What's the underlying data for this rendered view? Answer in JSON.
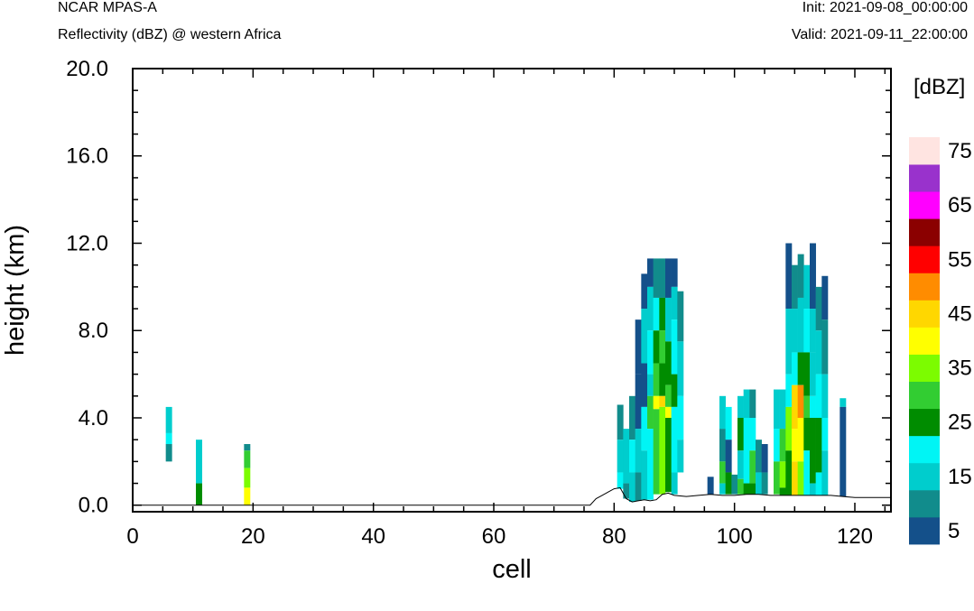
{
  "header": {
    "model": "NCAR MPAS-A",
    "subtitle": "Reflectivity (dBZ) @ western Africa",
    "init": "Init: 2021-09-08_00:00:00",
    "valid": "Valid: 2021-09-11_22:00:00"
  },
  "chart_data": {
    "type": "heatmap",
    "xlabel": "cell",
    "ylabel": "height (km)",
    "xlim": [
      0,
      126
    ],
    "ylim": [
      -0.3,
      20.0
    ],
    "xticks": [
      "0",
      "20",
      "40",
      "60",
      "80",
      "100",
      "120"
    ],
    "yticks": [
      "0.0",
      "4.0",
      "8.0",
      "12.0",
      "16.0",
      "20.0"
    ],
    "colorbar": {
      "unit": "[dBZ]",
      "labels": [
        "5",
        "15",
        "25",
        "35",
        "45",
        "55",
        "65",
        "75"
      ],
      "levels": [
        5,
        10,
        15,
        20,
        25,
        30,
        35,
        40,
        45,
        50,
        55,
        60,
        65,
        70,
        75
      ],
      "colors": [
        "#14508a",
        "#118c8c",
        "#00cdcd",
        "#00f5f5",
        "#008c00",
        "#32cd32",
        "#7cfc00",
        "#ffff00",
        "#ffd700",
        "#ff8c00",
        "#ff0000",
        "#8b0000",
        "#ff00ff",
        "#9932cc",
        "#ffe4e1"
      ]
    },
    "terrain": [
      [
        0,
        0
      ],
      [
        76,
        0
      ],
      [
        77,
        0.3
      ],
      [
        78,
        0.45
      ],
      [
        79,
        0.6
      ],
      [
        80,
        0.75
      ],
      [
        81,
        0.8
      ],
      [
        82,
        0.3
      ],
      [
        83,
        0.15
      ],
      [
        84,
        0.2
      ],
      [
        85,
        0.25
      ],
      [
        86,
        0.2
      ],
      [
        87,
        0.25
      ],
      [
        88,
        0.5
      ],
      [
        89,
        0.55
      ],
      [
        90,
        0.45
      ],
      [
        92,
        0.4
      ],
      [
        94,
        0.45
      ],
      [
        96,
        0.5
      ],
      [
        98,
        0.45
      ],
      [
        100,
        0.45
      ],
      [
        102,
        0.5
      ],
      [
        104,
        0.5
      ],
      [
        106,
        0.45
      ],
      [
        108,
        0.45
      ],
      [
        110,
        0.45
      ],
      [
        112,
        0.45
      ],
      [
        114,
        0.45
      ],
      [
        116,
        0.45
      ],
      [
        118,
        0.4
      ],
      [
        120,
        0.35
      ],
      [
        122,
        0.35
      ],
      [
        124,
        0.35
      ],
      [
        126,
        0.35
      ]
    ],
    "cells": [
      [
        6,
        4.5,
        3.3,
        15
      ],
      [
        6,
        3.3,
        2.8,
        20
      ],
      [
        6,
        2.8,
        2.0,
        10
      ],
      [
        11,
        3.0,
        1.0,
        15
      ],
      [
        11,
        1.0,
        0.0,
        25
      ],
      [
        19,
        2.8,
        2.5,
        10
      ],
      [
        19,
        2.5,
        1.7,
        30
      ],
      [
        19,
        1.7,
        0.8,
        35
      ],
      [
        19,
        0.8,
        0.0,
        40
      ],
      [
        81,
        4.6,
        3.0,
        10
      ],
      [
        81,
        3.0,
        1.5,
        15
      ],
      [
        81,
        1.5,
        0.75,
        20
      ],
      [
        82,
        3.5,
        1.0,
        15
      ],
      [
        82,
        1.0,
        0.3,
        10
      ],
      [
        83,
        5.0,
        3.0,
        10
      ],
      [
        83,
        3.0,
        1.5,
        20
      ],
      [
        83,
        1.5,
        0.15,
        15
      ],
      [
        84,
        8.5,
        6.0,
        5
      ],
      [
        84,
        6.0,
        3.5,
        5
      ],
      [
        84,
        3.5,
        1.5,
        15
      ],
      [
        84,
        1.5,
        0.2,
        10
      ],
      [
        85,
        10.6,
        9.0,
        5
      ],
      [
        85,
        9.0,
        6.5,
        15
      ],
      [
        85,
        6.5,
        4.5,
        5
      ],
      [
        85,
        4.5,
        2.5,
        20
      ],
      [
        85,
        2.5,
        0.25,
        15
      ],
      [
        86,
        11.3,
        10.0,
        5
      ],
      [
        86,
        10.0,
        8.0,
        15
      ],
      [
        86,
        8.0,
        6.0,
        20
      ],
      [
        86,
        6.0,
        5.0,
        15
      ],
      [
        86,
        5.0,
        3.5,
        30
      ],
      [
        86,
        3.5,
        0.25,
        20
      ],
      [
        87,
        11.3,
        9.5,
        10
      ],
      [
        87,
        9.5,
        8.0,
        20
      ],
      [
        87,
        8.0,
        6.5,
        25
      ],
      [
        87,
        6.5,
        5.0,
        30
      ],
      [
        87,
        5.0,
        4.4,
        40
      ],
      [
        87,
        4.4,
        0.5,
        30
      ],
      [
        88,
        11.3,
        9.5,
        10
      ],
      [
        88,
        9.5,
        8.0,
        25
      ],
      [
        88,
        8.0,
        6.5,
        30
      ],
      [
        88,
        6.5,
        5.0,
        25
      ],
      [
        88,
        5.0,
        4.5,
        45
      ],
      [
        88,
        4.5,
        0.5,
        35
      ],
      [
        89,
        11.3,
        9.5,
        5
      ],
      [
        89,
        9.5,
        7.5,
        15
      ],
      [
        89,
        7.5,
        5.5,
        25
      ],
      [
        89,
        5.5,
        4.5,
        30
      ],
      [
        89,
        4.5,
        4.0,
        40
      ],
      [
        89,
        4.0,
        0.6,
        25
      ],
      [
        90,
        11.3,
        10.0,
        5
      ],
      [
        90,
        10.0,
        8.5,
        15
      ],
      [
        90,
        8.5,
        6.0,
        20
      ],
      [
        90,
        6.0,
        4.5,
        25
      ],
      [
        90,
        4.5,
        1.5,
        20
      ],
      [
        90,
        1.5,
        0.5,
        15
      ],
      [
        91,
        9.8,
        7.5,
        10
      ],
      [
        91,
        7.5,
        5.0,
        15
      ],
      [
        91,
        5.0,
        3.0,
        20
      ],
      [
        91,
        3.0,
        1.5,
        15
      ],
      [
        96,
        1.3,
        0.5,
        5
      ],
      [
        98,
        5.0,
        3.5,
        15
      ],
      [
        98,
        3.5,
        2.0,
        10
      ],
      [
        98,
        2.0,
        1.0,
        30
      ],
      [
        98,
        1.0,
        0.5,
        15
      ],
      [
        99,
        4.5,
        3.0,
        20
      ],
      [
        99,
        3.0,
        1.5,
        5
      ],
      [
        99,
        1.5,
        0.5,
        25
      ],
      [
        100,
        1.4,
        0.5,
        10
      ],
      [
        101,
        5.0,
        4.0,
        15
      ],
      [
        101,
        4.0,
        2.5,
        25
      ],
      [
        101,
        2.5,
        1.2,
        15
      ],
      [
        101,
        1.2,
        0.5,
        30
      ],
      [
        102,
        5.3,
        4.0,
        15
      ],
      [
        102,
        4.0,
        1.0,
        20
      ],
      [
        102,
        1.0,
        0.5,
        25
      ],
      [
        103,
        5.3,
        4.0,
        10
      ],
      [
        103,
        4.0,
        2.5,
        20
      ],
      [
        103,
        2.5,
        1.0,
        30
      ],
      [
        103,
        1.0,
        0.5,
        25
      ],
      [
        104,
        3.0,
        1.5,
        10
      ],
      [
        104,
        1.5,
        0.5,
        15
      ],
      [
        105,
        2.8,
        1.5,
        5
      ],
      [
        105,
        1.5,
        0.5,
        10
      ],
      [
        107,
        5.3,
        3.5,
        15
      ],
      [
        107,
        3.5,
        2.0,
        20
      ],
      [
        107,
        2.0,
        0.5,
        30
      ],
      [
        108,
        5.3,
        3.5,
        15
      ],
      [
        108,
        3.5,
        2.0,
        30
      ],
      [
        108,
        2.0,
        0.8,
        35
      ],
      [
        108,
        0.8,
        0.45,
        25
      ],
      [
        109,
        12.0,
        9.0,
        5
      ],
      [
        109,
        9.0,
        6.0,
        15
      ],
      [
        109,
        6.0,
        4.5,
        20
      ],
      [
        109,
        4.5,
        2.5,
        35
      ],
      [
        109,
        2.5,
        0.45,
        25
      ],
      [
        110,
        11.0,
        9.0,
        10
      ],
      [
        110,
        9.0,
        7.0,
        15
      ],
      [
        110,
        7.0,
        5.5,
        20
      ],
      [
        110,
        5.5,
        3.5,
        45
      ],
      [
        110,
        3.5,
        2.0,
        40
      ],
      [
        110,
        2.0,
        0.45,
        45
      ],
      [
        111,
        11.5,
        9.5,
        10
      ],
      [
        111,
        9.5,
        7.0,
        15
      ],
      [
        111,
        7.0,
        5.5,
        25
      ],
      [
        111,
        5.5,
        4.0,
        50
      ],
      [
        111,
        4.0,
        2.0,
        40
      ],
      [
        111,
        2.0,
        0.45,
        35
      ],
      [
        112,
        11.0,
        9.0,
        15
      ],
      [
        112,
        9.0,
        7.0,
        20
      ],
      [
        112,
        7.0,
        5.0,
        25
      ],
      [
        112,
        5.0,
        4.0,
        30
      ],
      [
        112,
        4.0,
        2.5,
        25
      ],
      [
        112,
        2.5,
        0.45,
        20
      ],
      [
        113,
        12.0,
        9.0,
        5
      ],
      [
        113,
        9.0,
        7.0,
        15
      ],
      [
        113,
        7.0,
        5.0,
        15
      ],
      [
        113,
        5.0,
        4.0,
        20
      ],
      [
        113,
        4.0,
        1.0,
        25
      ],
      [
        113,
        1.0,
        0.45,
        15
      ],
      [
        114,
        10.0,
        8.0,
        10
      ],
      [
        114,
        8.0,
        6.0,
        15
      ],
      [
        114,
        6.0,
        4.0,
        20
      ],
      [
        114,
        4.0,
        1.5,
        25
      ],
      [
        114,
        1.5,
        0.45,
        20
      ],
      [
        115,
        10.5,
        8.5,
        5
      ],
      [
        115,
        8.5,
        6.0,
        10
      ],
      [
        115,
        6.0,
        4.0,
        15
      ],
      [
        115,
        4.0,
        2.5,
        20
      ],
      [
        115,
        2.5,
        0.45,
        15
      ],
      [
        118,
        4.9,
        4.5,
        15
      ],
      [
        118,
        4.5,
        0.4,
        5
      ]
    ]
  }
}
